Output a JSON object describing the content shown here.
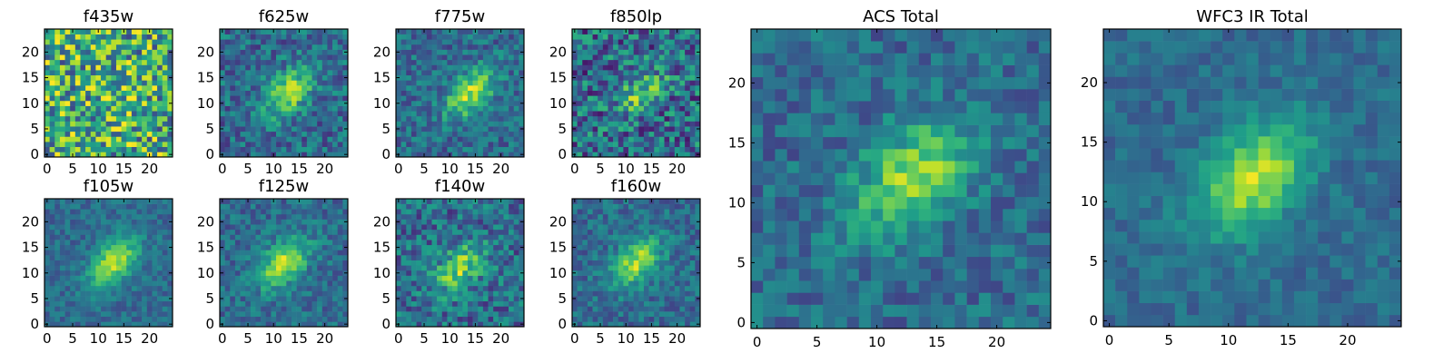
{
  "chart_data": [
    {
      "type": "heatmap",
      "title": "f435w",
      "xticks": [
        "0",
        "5",
        "10",
        "15",
        "20"
      ],
      "yticks": [
        "0",
        "5",
        "10",
        "15",
        "20"
      ],
      "xlim": [
        -0.5,
        24.5
      ],
      "ylim": [
        -0.5,
        24.5
      ],
      "grid_size": 25,
      "colormap": "viridis",
      "peak_center": [
        14,
        13
      ],
      "peak_strength": 0.05,
      "noise_level": 0.45
    },
    {
      "type": "heatmap",
      "title": "f625w",
      "xticks": [
        "0",
        "5",
        "10",
        "15",
        "20"
      ],
      "yticks": [
        "0",
        "5",
        "10",
        "15",
        "20"
      ],
      "xlim": [
        -0.5,
        24.5
      ],
      "ylim": [
        -0.5,
        24.5
      ],
      "grid_size": 25,
      "colormap": "viridis",
      "peak_center": [
        13,
        12
      ],
      "peak_strength": 0.75,
      "noise_level": 0.2
    },
    {
      "type": "heatmap",
      "title": "f775w",
      "xticks": [
        "0",
        "5",
        "10",
        "15",
        "20"
      ],
      "yticks": [
        "0",
        "5",
        "10",
        "15",
        "20"
      ],
      "xlim": [
        -0.5,
        24.5
      ],
      "ylim": [
        -0.5,
        24.5
      ],
      "grid_size": 25,
      "colormap": "viridis",
      "peak_center": [
        14,
        12
      ],
      "peak_strength": 0.8,
      "noise_level": 0.18
    },
    {
      "type": "heatmap",
      "title": "f850lp",
      "xticks": [
        "0",
        "5",
        "10",
        "15",
        "20"
      ],
      "yticks": [
        "0",
        "5",
        "10",
        "15",
        "20"
      ],
      "xlim": [
        -0.5,
        24.5
      ],
      "ylim": [
        -0.5,
        24.5
      ],
      "grid_size": 25,
      "colormap": "viridis",
      "peak_center": [
        13,
        12
      ],
      "peak_strength": 0.55,
      "noise_level": 0.3
    },
    {
      "type": "heatmap",
      "title": "f105w",
      "xticks": [
        "0",
        "5",
        "10",
        "15",
        "20"
      ],
      "yticks": [
        "0",
        "5",
        "10",
        "15",
        "20"
      ],
      "xlim": [
        -0.5,
        24.5
      ],
      "ylim": [
        -0.5,
        24.5
      ],
      "grid_size": 25,
      "colormap": "viridis",
      "peak_center": [
        13,
        12
      ],
      "peak_strength": 0.85,
      "noise_level": 0.12
    },
    {
      "type": "heatmap",
      "title": "f125w",
      "xticks": [
        "0",
        "5",
        "10",
        "15",
        "20"
      ],
      "yticks": [
        "0",
        "5",
        "10",
        "15",
        "20"
      ],
      "xlim": [
        -0.5,
        24.5
      ],
      "ylim": [
        -0.5,
        24.5
      ],
      "grid_size": 25,
      "colormap": "viridis",
      "peak_center": [
        12,
        12
      ],
      "peak_strength": 0.85,
      "noise_level": 0.15
    },
    {
      "type": "heatmap",
      "title": "f140w",
      "xticks": [
        "0",
        "5",
        "10",
        "15",
        "20"
      ],
      "yticks": [
        "0",
        "5",
        "10",
        "15",
        "20"
      ],
      "xlim": [
        -0.5,
        24.5
      ],
      "ylim": [
        -0.5,
        24.5
      ],
      "grid_size": 25,
      "colormap": "viridis",
      "peak_center": [
        12,
        11
      ],
      "peak_strength": 0.7,
      "noise_level": 0.22
    },
    {
      "type": "heatmap",
      "title": "f160w",
      "xticks": [
        "0",
        "5",
        "10",
        "15",
        "20"
      ],
      "yticks": [
        "0",
        "5",
        "10",
        "15",
        "20"
      ],
      "xlim": [
        -0.5,
        24.5
      ],
      "ylim": [
        -0.5,
        24.5
      ],
      "grid_size": 25,
      "colormap": "viridis",
      "peak_center": [
        12,
        12
      ],
      "peak_strength": 0.8,
      "noise_level": 0.15
    },
    {
      "type": "heatmap",
      "title": "ACS Total",
      "xticks": [
        "0",
        "5",
        "10",
        "15",
        "20"
      ],
      "yticks": [
        "0",
        "5",
        "10",
        "15",
        "20"
      ],
      "xlim": [
        -0.5,
        24.5
      ],
      "ylim": [
        -0.5,
        24.5
      ],
      "grid_size": 25,
      "colormap": "viridis",
      "peak_center": [
        13,
        12
      ],
      "peak_strength": 0.8,
      "noise_level": 0.15
    },
    {
      "type": "heatmap",
      "title": "WFC3 IR Total",
      "xticks": [
        "0",
        "5",
        "10",
        "15",
        "20"
      ],
      "yticks": [
        "0",
        "5",
        "10",
        "15",
        "20"
      ],
      "xlim": [
        -0.5,
        24.5
      ],
      "ylim": [
        -0.5,
        24.5
      ],
      "grid_size": 25,
      "colormap": "viridis",
      "peak_center": [
        12,
        12
      ],
      "peak_strength": 0.85,
      "noise_level": 0.1
    }
  ]
}
